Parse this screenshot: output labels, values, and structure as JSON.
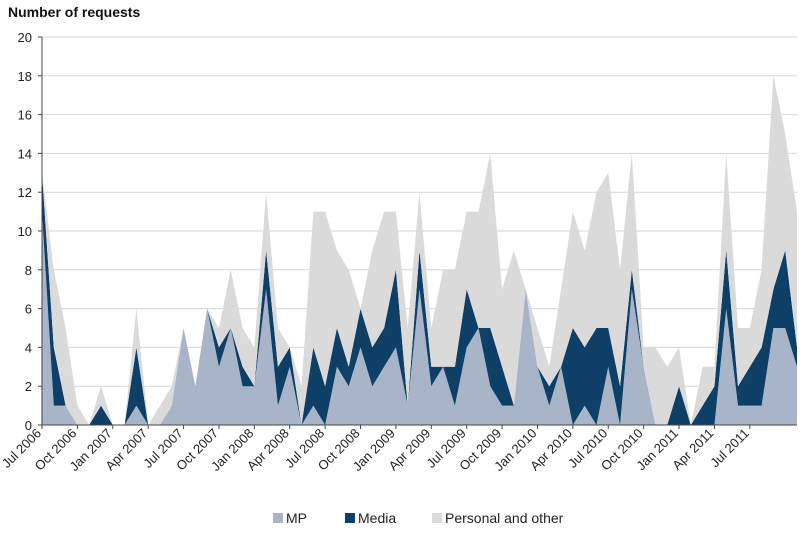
{
  "chart_data": {
    "type": "area",
    "ylabel": "Number of requests",
    "ylim": [
      0,
      20
    ],
    "ytick_values": [
      0,
      2,
      4,
      6,
      8,
      10,
      12,
      14,
      16,
      18,
      20
    ],
    "yticks": [
      "0",
      "2",
      "4",
      "6",
      "8",
      "10",
      "12",
      "14",
      "16",
      "18",
      "20"
    ],
    "x_tick_labels": [
      "Jul 2006",
      "Oct 2006",
      "Jan 2007",
      "Apr 2007",
      "Jul 2007",
      "Oct 2007",
      "Jan 2008",
      "Apr 2008",
      "Jul 2008",
      "Oct 2008",
      "Jan 2009",
      "Apr 2009",
      "Jul 2009",
      "Oct 2009",
      "Jan 2010",
      "Apr 2010",
      "Jul 2010",
      "Oct 2010",
      "Jan 2011",
      "Apr 2011",
      "Jul 2011"
    ],
    "x_tick_months": [
      0,
      3,
      6,
      9,
      12,
      15,
      18,
      21,
      24,
      27,
      30,
      33,
      36,
      39,
      42,
      45,
      48,
      51,
      54,
      57,
      60
    ],
    "grid": true,
    "legend_position": "bottom",
    "stacked": true,
    "series": [
      {
        "name": "MP",
        "color": "#a8b5c9",
        "values": [
          11,
          1,
          1,
          0,
          0,
          0,
          0,
          0,
          1,
          0,
          0,
          1,
          5,
          2,
          6,
          3,
          5,
          2,
          2,
          7,
          1,
          3,
          0,
          1,
          0,
          3,
          2,
          4,
          2,
          3,
          4,
          1,
          7,
          2,
          3,
          1,
          4,
          5,
          2,
          1,
          1,
          7,
          3,
          1,
          3,
          0,
          1,
          0,
          3,
          0,
          7,
          3,
          0,
          0,
          0,
          0,
          0,
          0,
          6,
          1,
          1,
          1,
          5,
          5,
          3
        ]
      },
      {
        "name": "Media",
        "color": "#0e3f66",
        "values": [
          2,
          3,
          0,
          0,
          0,
          1,
          0,
          0,
          3,
          0,
          0,
          0,
          0,
          0,
          0,
          1,
          0,
          1,
          0,
          2,
          2,
          1,
          0,
          3,
          2,
          2,
          1,
          2,
          2,
          2,
          4,
          0,
          2,
          1,
          0,
          2,
          3,
          0,
          3,
          2,
          0,
          0,
          0,
          1,
          0,
          5,
          3,
          5,
          2,
          2,
          1,
          0,
          0,
          0,
          2,
          0,
          1,
          2,
          3,
          1,
          2,
          3,
          2,
          4,
          1
        ]
      },
      {
        "name": "Personal and other",
        "color": "#dadada",
        "values": [
          0,
          4,
          4,
          1,
          0,
          1,
          0,
          0,
          2,
          0,
          1,
          1,
          0,
          0,
          0,
          1,
          3,
          2,
          2,
          3,
          2,
          0,
          2,
          7,
          9,
          4,
          5,
          0,
          5,
          6,
          3,
          4,
          3,
          2,
          5,
          5,
          4,
          6,
          9,
          4,
          8,
          0,
          2,
          1,
          4,
          6,
          5,
          7,
          8,
          6,
          6,
          1,
          4,
          3,
          2,
          0,
          2,
          1,
          5,
          3,
          2,
          4,
          11,
          6,
          7
        ]
      }
    ]
  }
}
